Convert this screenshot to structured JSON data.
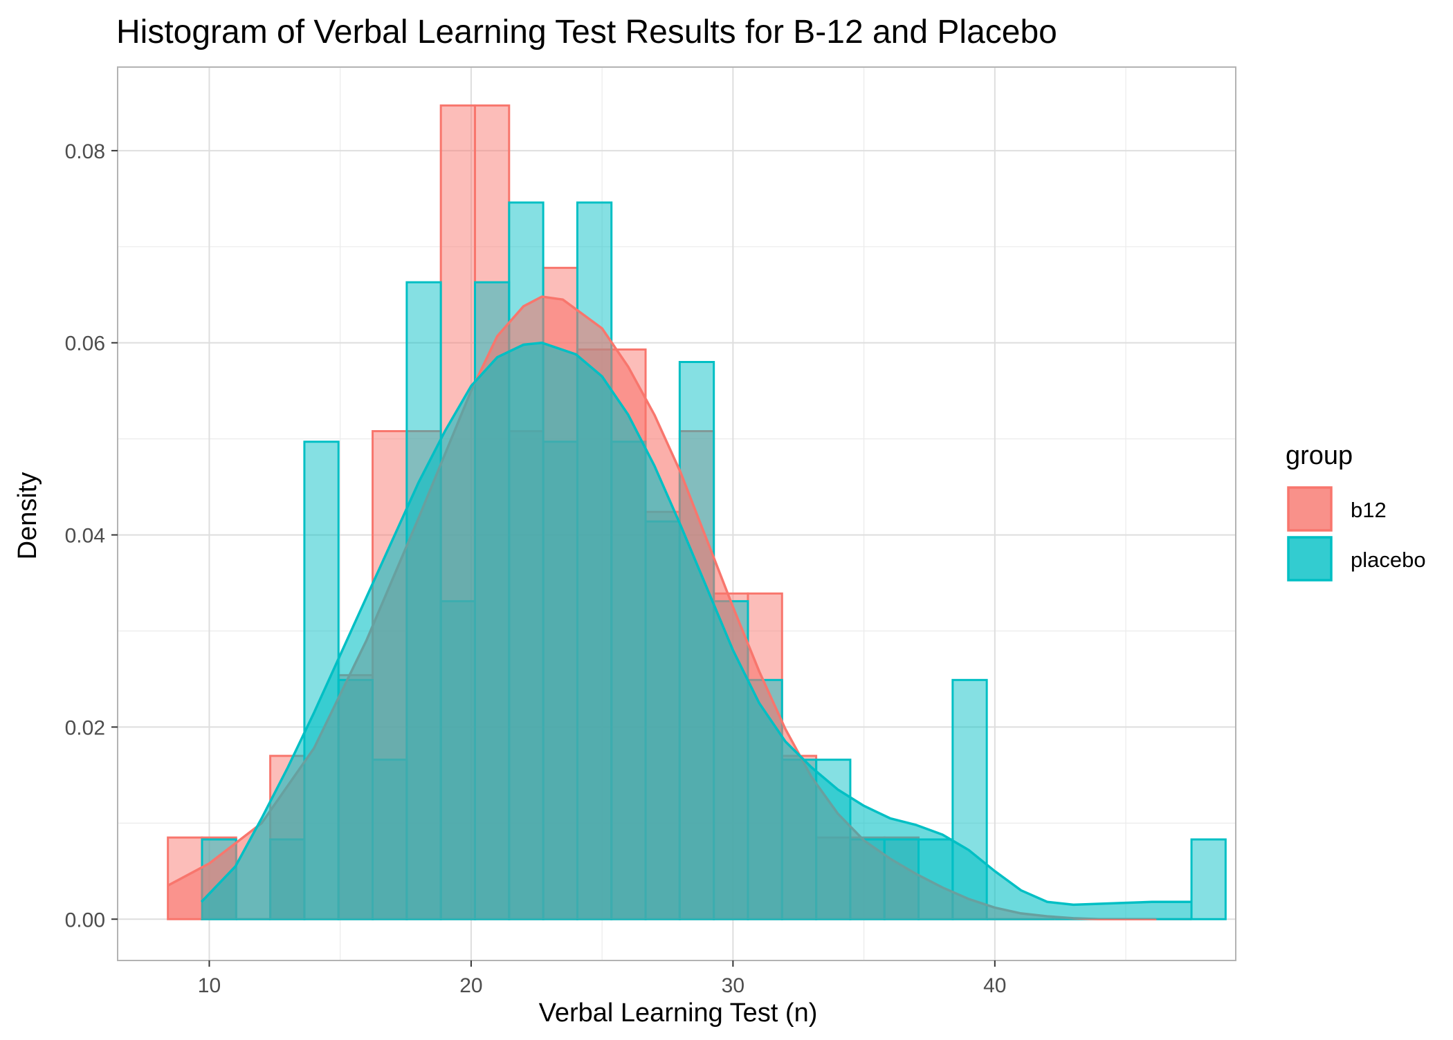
{
  "chart_data": {
    "type": "histogram",
    "title": "Histogram of Verbal Learning Test Results for B-12 and Placebo",
    "xlabel": "Verbal Learning Test (n)",
    "ylabel": "Density",
    "xlim": [
      6.5,
      49.2
    ],
    "ylim": [
      -0.0043,
      0.0887
    ],
    "x_ticks": [
      10,
      20,
      30,
      40
    ],
    "x_tick_labels": [
      "10",
      "20",
      "30",
      "40"
    ],
    "y_ticks": [
      0.0,
      0.02,
      0.04,
      0.06,
      0.08
    ],
    "y_tick_labels": [
      "0.00",
      "0.02",
      "0.04",
      "0.06",
      "0.08"
    ],
    "grid": true,
    "legend_title": "group",
    "legend_position": "right",
    "bins": {
      "start": 8.42,
      "width": 1.303
    },
    "series": [
      {
        "name": "b12",
        "color": "#F8766D",
        "bin_start_index": 0,
        "bin_densities": [
          0.0085,
          0.0085,
          0.0,
          0.017,
          0.0,
          0.0254,
          0.0508,
          0.0508,
          0.0847,
          0.0847,
          0.0508,
          0.0678,
          0.0593,
          0.0593,
          0.0424,
          0.0508,
          0.0339,
          0.0339,
          0.017,
          0.0085,
          0.0085,
          0.0085,
          0.0,
          0.0,
          0.0,
          0.0,
          0.0,
          0.0,
          0.0,
          0.0
        ],
        "density_curve": {
          "x": [
            8.42,
            10,
            12,
            14,
            16,
            18,
            20,
            21,
            22,
            22.7,
            23.5,
            25,
            26,
            27,
            28,
            29,
            30,
            31,
            32,
            33,
            34,
            35,
            36,
            37,
            38,
            39,
            40,
            41,
            42,
            43,
            44,
            45,
            46.17
          ],
          "y": [
            0.0035,
            0.0058,
            0.01,
            0.0178,
            0.029,
            0.0418,
            0.055,
            0.0607,
            0.0638,
            0.0648,
            0.0645,
            0.0615,
            0.0575,
            0.0525,
            0.0465,
            0.0395,
            0.0325,
            0.0258,
            0.0198,
            0.0148,
            0.011,
            0.0082,
            0.0063,
            0.0047,
            0.0033,
            0.0021,
            0.0012,
            0.0006,
            0.0003,
            0.0001,
            0.0,
            0.0,
            0.0
          ]
        }
      },
      {
        "name": "placebo",
        "color": "#00BFC4",
        "bin_start_index": 1,
        "bin_densities": [
          0.0083,
          0.0,
          0.0083,
          0.0497,
          0.0249,
          0.0166,
          0.0663,
          0.0331,
          0.0663,
          0.0746,
          0.0497,
          0.0746,
          0.0497,
          0.0414,
          0.058,
          0.0331,
          0.0249,
          0.0166,
          0.0166,
          0.0083,
          0.0083,
          0.0083,
          0.0249,
          0.0,
          0.0,
          0.0,
          0.0,
          0.0,
          0.0,
          0.0083
        ],
        "density_curve": {
          "x": [
            9.7,
            11,
            12,
            13,
            14,
            15,
            16,
            17,
            18,
            19,
            20,
            21,
            22,
            22.7,
            24,
            25,
            26,
            27,
            28,
            29,
            30,
            31,
            32,
            33,
            34,
            35,
            36,
            37,
            38,
            39,
            40,
            41,
            42,
            43,
            44,
            45,
            46,
            47.5
          ],
          "y": [
            0.0018,
            0.0055,
            0.0105,
            0.0158,
            0.0215,
            0.0275,
            0.0335,
            0.0395,
            0.0455,
            0.0508,
            0.0555,
            0.0585,
            0.0598,
            0.06,
            0.0588,
            0.0565,
            0.0525,
            0.0472,
            0.041,
            0.0345,
            0.028,
            0.0225,
            0.0185,
            0.0158,
            0.0135,
            0.0118,
            0.0105,
            0.0098,
            0.0088,
            0.0072,
            0.005,
            0.003,
            0.0018,
            0.0015,
            0.0016,
            0.0017,
            0.0018,
            0.0018
          ]
        }
      }
    ]
  }
}
